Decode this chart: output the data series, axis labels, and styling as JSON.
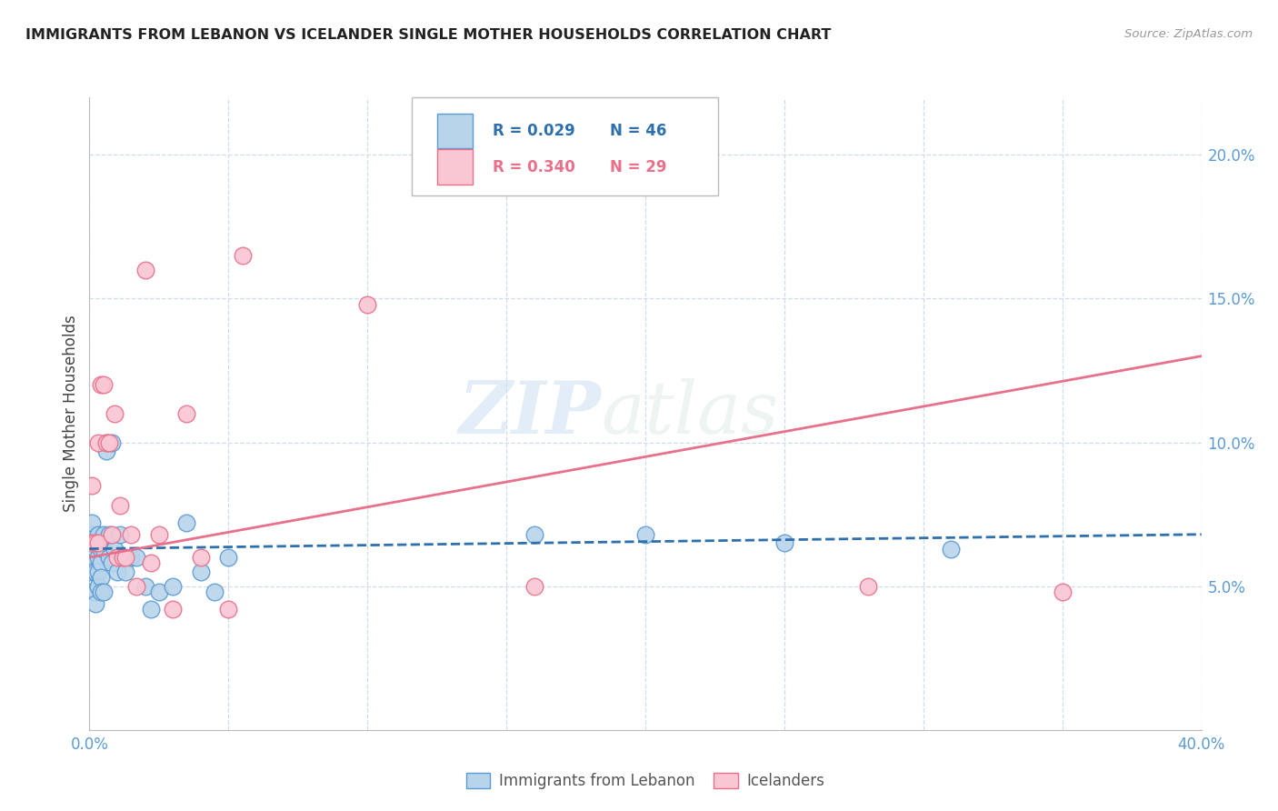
{
  "title": "IMMIGRANTS FROM LEBANON VS ICELANDER SINGLE MOTHER HOUSEHOLDS CORRELATION CHART",
  "source": "Source: ZipAtlas.com",
  "ylabel": "Single Mother Households",
  "watermark_zip": "ZIP",
  "watermark_atlas": "atlas",
  "xlim": [
    0.0,
    0.4
  ],
  "ylim": [
    0.0,
    0.22
  ],
  "yticks": [
    0.05,
    0.1,
    0.15,
    0.2
  ],
  "ytick_labels": [
    "5.0%",
    "10.0%",
    "15.0%",
    "20.0%"
  ],
  "xticks": [
    0.0,
    0.05,
    0.1,
    0.15,
    0.2,
    0.25,
    0.3,
    0.35,
    0.4
  ],
  "blue_R": "R = 0.029",
  "blue_N": "N = 46",
  "pink_R": "R = 0.340",
  "pink_N": "N = 29",
  "blue_color": "#b8d4ea",
  "blue_edge": "#5b9bd5",
  "pink_color": "#f9c6d4",
  "pink_edge": "#e8708a",
  "blue_line_color": "#2e6fad",
  "pink_line_color": "#e8708a",
  "axis_label_color": "#5b9bd5",
  "grid_color": "#d0dce8",
  "blue_x": [
    0.001,
    0.001,
    0.001,
    0.001,
    0.001,
    0.002,
    0.002,
    0.002,
    0.002,
    0.002,
    0.003,
    0.003,
    0.003,
    0.003,
    0.004,
    0.004,
    0.004,
    0.004,
    0.005,
    0.005,
    0.005,
    0.006,
    0.006,
    0.007,
    0.007,
    0.008,
    0.008,
    0.009,
    0.01,
    0.011,
    0.012,
    0.013,
    0.015,
    0.017,
    0.02,
    0.022,
    0.025,
    0.03,
    0.035,
    0.04,
    0.045,
    0.05,
    0.16,
    0.2,
    0.25,
    0.31
  ],
  "blue_y": [
    0.068,
    0.072,
    0.06,
    0.055,
    0.048,
    0.065,
    0.063,
    0.055,
    0.048,
    0.044,
    0.068,
    0.06,
    0.055,
    0.05,
    0.063,
    0.058,
    0.053,
    0.048,
    0.068,
    0.063,
    0.048,
    0.1,
    0.097,
    0.068,
    0.06,
    0.1,
    0.058,
    0.063,
    0.055,
    0.068,
    0.06,
    0.055,
    0.06,
    0.06,
    0.05,
    0.042,
    0.048,
    0.05,
    0.072,
    0.055,
    0.048,
    0.06,
    0.068,
    0.068,
    0.065,
    0.063
  ],
  "pink_x": [
    0.001,
    0.001,
    0.002,
    0.003,
    0.003,
    0.004,
    0.005,
    0.006,
    0.007,
    0.008,
    0.009,
    0.01,
    0.011,
    0.012,
    0.013,
    0.015,
    0.017,
    0.02,
    0.022,
    0.025,
    0.03,
    0.035,
    0.04,
    0.05,
    0.055,
    0.1,
    0.16,
    0.28,
    0.35
  ],
  "pink_y": [
    0.065,
    0.085,
    0.065,
    0.065,
    0.1,
    0.12,
    0.12,
    0.1,
    0.1,
    0.068,
    0.11,
    0.06,
    0.078,
    0.06,
    0.06,
    0.068,
    0.05,
    0.16,
    0.058,
    0.068,
    0.042,
    0.11,
    0.06,
    0.042,
    0.165,
    0.148,
    0.05,
    0.05,
    0.048
  ],
  "blue_trend_x": [
    0.0,
    0.4
  ],
  "blue_trend_y": [
    0.063,
    0.068
  ],
  "pink_trend_x": [
    0.0,
    0.4
  ],
  "pink_trend_y": [
    0.06,
    0.13
  ]
}
